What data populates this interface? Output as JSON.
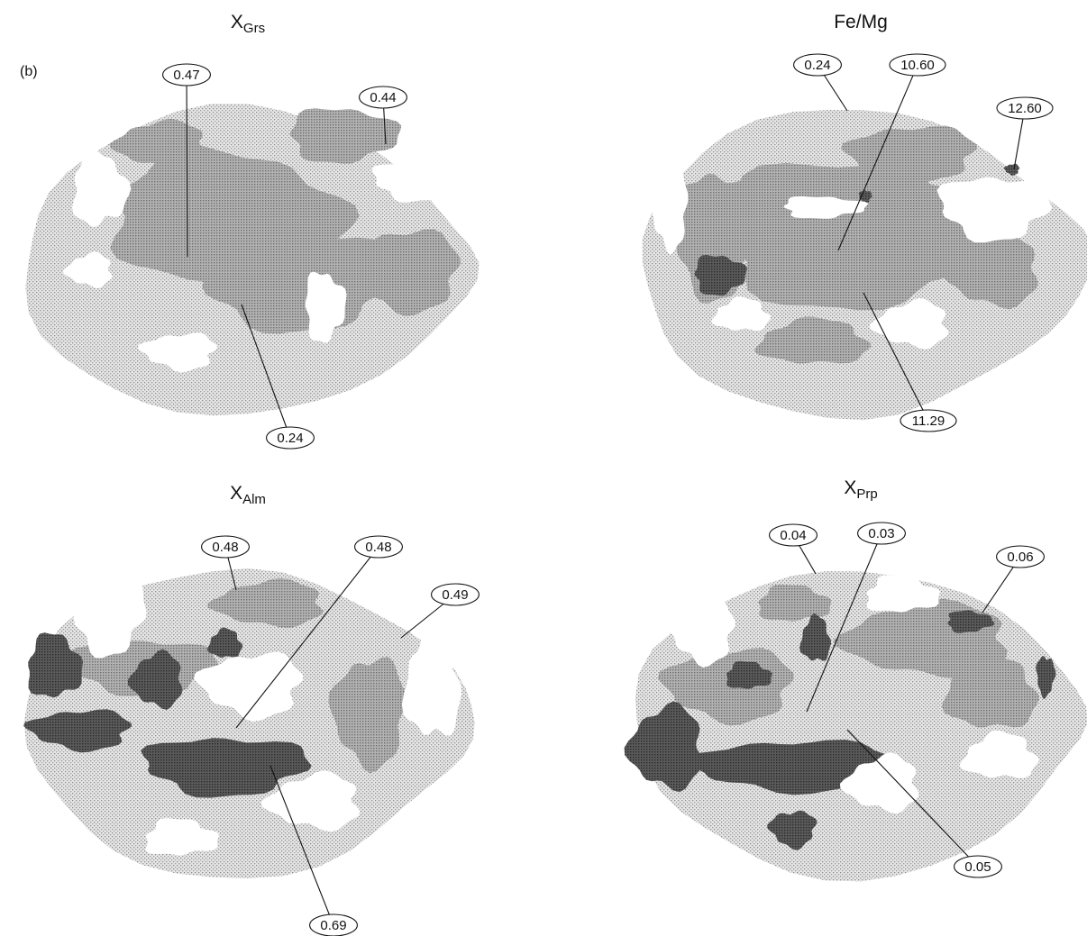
{
  "panel_label": "(b)",
  "panels": [
    {
      "title": {
        "main": "X",
        "sub": "Grs"
      },
      "callouts": [
        "0.47",
        "0.44",
        "0.24"
      ]
    },
    {
      "title": {
        "main": "Fe/Mg"
      },
      "callouts": [
        "0.24",
        "10.60",
        "12.60",
        "11.29"
      ]
    },
    {
      "title": {
        "main": "X",
        "sub": "Alm"
      },
      "callouts": [
        "0.48",
        "0.48",
        "0.49",
        "0.69"
      ]
    },
    {
      "title": {
        "main": "X",
        "sub": "Prp"
      },
      "callouts": [
        "0.04",
        "0.03",
        "0.06",
        "0.05"
      ]
    }
  ]
}
